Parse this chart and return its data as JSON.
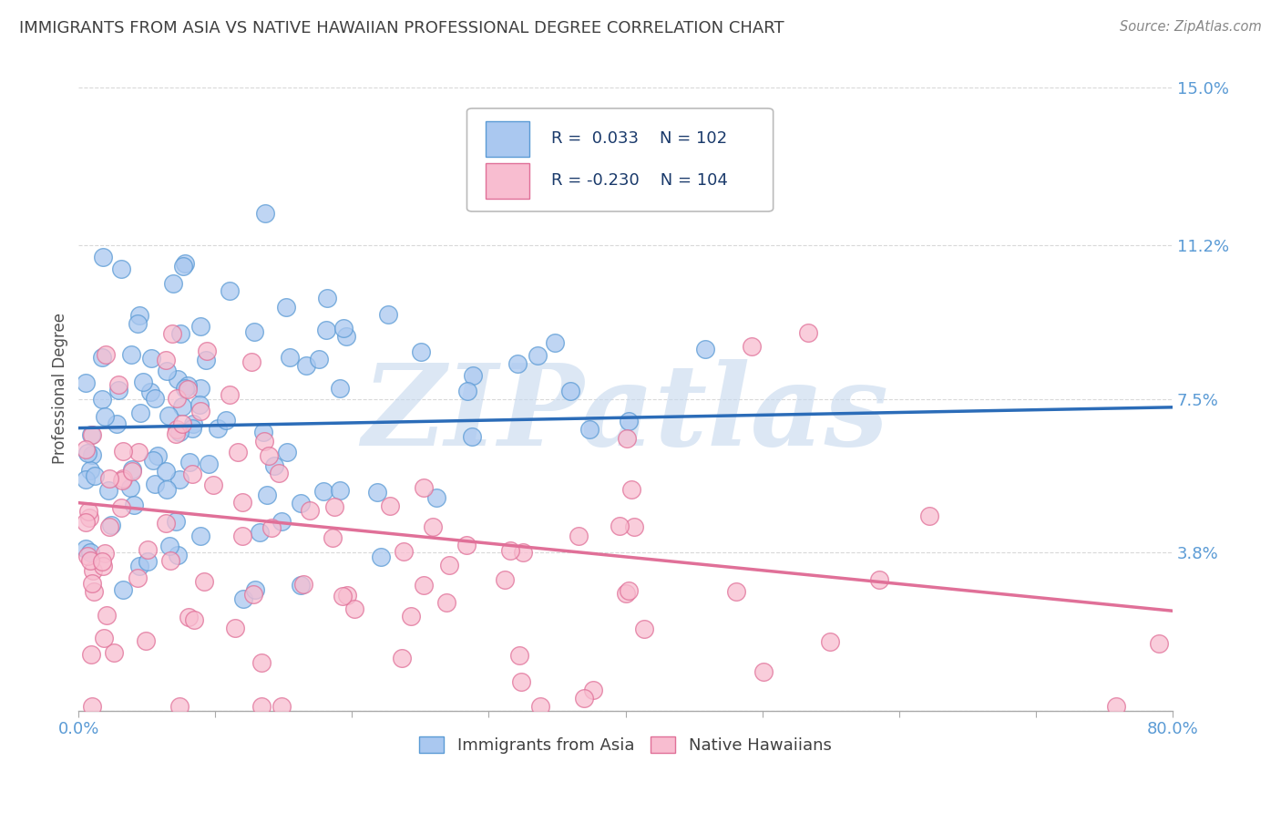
{
  "title": "IMMIGRANTS FROM ASIA VS NATIVE HAWAIIAN PROFESSIONAL DEGREE CORRELATION CHART",
  "source": "Source: ZipAtlas.com",
  "ylabel": "Professional Degree",
  "yticks": [
    0.0,
    0.038,
    0.075,
    0.112,
    0.15
  ],
  "ytick_labels": [
    "",
    "3.8%",
    "7.5%",
    "11.2%",
    "15.0%"
  ],
  "xtick_positions": [
    0.0,
    0.1,
    0.2,
    0.3,
    0.4,
    0.5,
    0.6,
    0.7,
    0.8
  ],
  "xlim": [
    0.0,
    0.8
  ],
  "ylim": [
    0.0,
    0.155
  ],
  "series1": {
    "label": "Immigrants from Asia",
    "color": "#aac8f0",
    "edge_color": "#5b9bd5",
    "R": 0.033,
    "N": 102,
    "trend_color": "#2b6cb8",
    "trend_start_y": 0.068,
    "trend_end_y": 0.073
  },
  "series2": {
    "label": "Native Hawaiians",
    "color": "#f8bdd0",
    "edge_color": "#e07098",
    "R": -0.23,
    "N": 104,
    "trend_color": "#e07098",
    "trend_start_y": 0.05,
    "trend_end_y": 0.024
  },
  "watermark_text": "ZIPatlas",
  "watermark_color": "#c5d8ee",
  "background_color": "#ffffff",
  "grid_color": "#d0d0d0",
  "title_color": "#404040",
  "axis_label_color": "#5b9bd5",
  "source_color": "#888888",
  "legend_text_color": "#1a3a6b",
  "seed": 7
}
